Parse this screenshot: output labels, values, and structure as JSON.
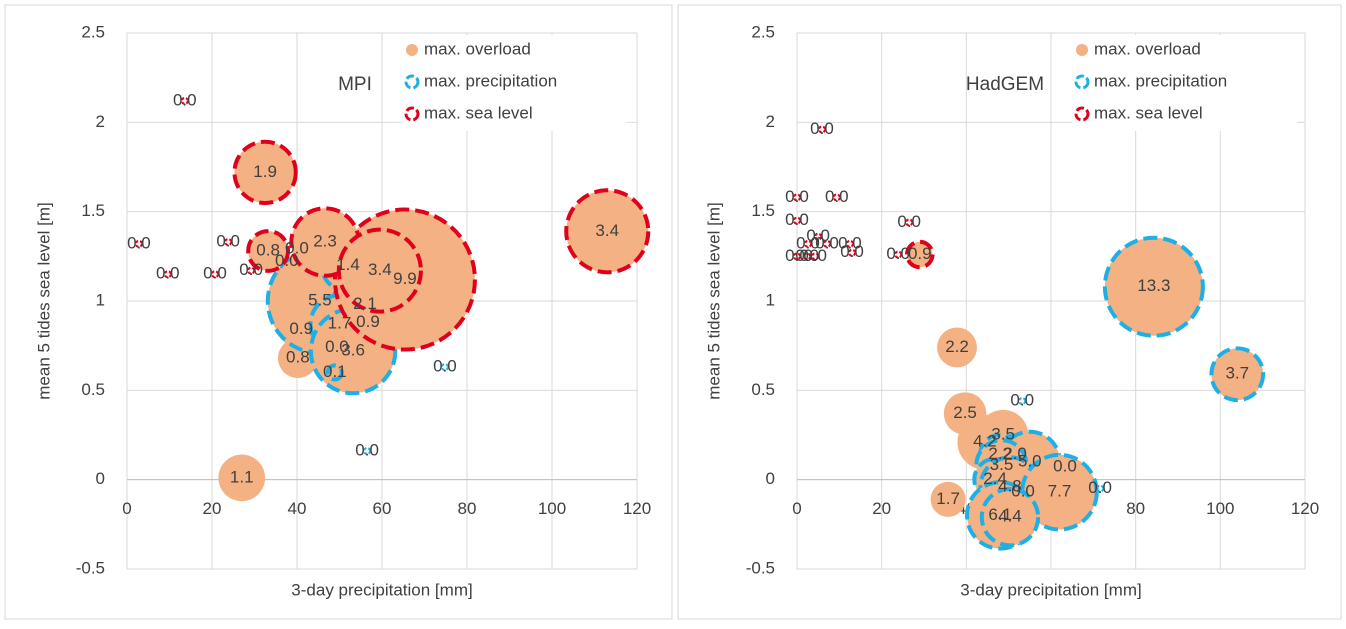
{
  "chart_data": [
    {
      "type": "bubble",
      "title": "MPI",
      "x_label": "3-day precipitation [mm]",
      "y_label": "mean 5 tides sea level [m]",
      "xlim": [
        0,
        120
      ],
      "ylim": [
        -0.5,
        2.5
      ],
      "xticks": [
        0,
        20,
        40,
        60,
        80,
        100,
        120
      ],
      "yticks": [
        -0.5,
        0,
        0.5,
        1,
        1.5,
        2,
        2.5
      ],
      "grid": true,
      "legend": "top-right",
      "series": [
        {
          "name": "max. overload",
          "color": "#f4b183",
          "x": [
            41,
            40.2,
            27,
            13.6,
            2.8,
            23.8,
            40,
            37.6,
            9.6,
            20.7,
            29.2
          ],
          "values": [
            0.84,
            0.68,
            0.01,
            2.12,
            1.32,
            1.33,
            1.29,
            1.22,
            1.15,
            1.15,
            1.17
          ],
          "sizes": [
            0.9,
            0.8,
            1.1,
            0,
            0,
            0,
            0,
            0,
            0,
            0,
            0
          ],
          "size_labels": [
            "0.9",
            "0.8",
            "1.1",
            "0.0",
            "0.0",
            "0.0",
            "0.0",
            "0.0",
            "0.0",
            "0.0",
            "0.0"
          ]
        },
        {
          "name": "max. precipitation",
          "color": "#1cb0e6",
          "x": [
            45.4,
            52,
            56,
            50,
            56.7,
            49.4,
            53.2,
            48.9,
            74.8,
            56.5
          ],
          "values": [
            1.0,
            1.2,
            0.98,
            0.87,
            0.88,
            0.74,
            0.72,
            0.6,
            0.63,
            0.16
          ],
          "sizes": [
            5.5,
            1.4,
            2.1,
            1.7,
            0.9,
            0,
            3.6,
            0.1,
            0,
            0
          ],
          "size_labels": [
            "5.5",
            "1.4",
            "2.1",
            "1.7",
            "0.9",
            "0.0",
            "3.6",
            "0.1",
            "0.0",
            "0.0"
          ]
        },
        {
          "name": "max. sea level",
          "color": "#e0001b",
          "x": [
            65.4,
            32.5,
            113,
            46.6,
            33.2,
            59.5
          ],
          "values": [
            1.12,
            1.72,
            1.39,
            1.33,
            1.28,
            1.17
          ],
          "sizes": [
            9.9,
            1.9,
            3.4,
            2.3,
            0.8,
            3.4
          ],
          "size_labels": [
            "9.9",
            "1.9",
            "3.4",
            "2.3",
            "0.8",
            "3.4"
          ]
        }
      ]
    },
    {
      "type": "bubble",
      "title": "HadGEM",
      "x_label": "3-day precipitation [mm]",
      "y_label": "mean 5 tides sea level [m]",
      "xlim": [
        0,
        120
      ],
      "ylim": [
        -0.5,
        2.5
      ],
      "xticks": [
        0,
        20,
        40,
        60,
        80,
        100,
        120
      ],
      "yticks": [
        -0.5,
        0,
        0.5,
        1,
        1.5,
        2,
        2.5
      ],
      "grid": true,
      "legend": "top-right",
      "series": [
        {
          "name": "max. overload",
          "color": "#f4b183",
          "x": [
            37.8,
            39.7,
            48.7,
            44.4,
            35.7,
            5.9,
            0,
            9.4,
            0,
            5,
            7.1,
            2.6,
            12.5,
            2.4,
            0,
            4.3,
            13,
            23.9
          ],
          "values": [
            0.74,
            0.37,
            0.25,
            0.21,
            -0.11,
            1.96,
            1.58,
            1.58,
            1.45,
            1.36,
            1.32,
            1.32,
            1.32,
            1.25,
            1.25,
            1.25,
            1.27,
            1.26
          ],
          "sizes": [
            2.2,
            2.5,
            3.5,
            4.2,
            1.7,
            0,
            0,
            0,
            0,
            0,
            0,
            0,
            0,
            0,
            0,
            0,
            0,
            0
          ],
          "size_labels": [
            "2.2",
            "2.5",
            "3.5",
            "4.2",
            "1.7",
            "0.0",
            "0.0",
            "0.0",
            "0.0",
            "0.0",
            "0.0",
            "0.0",
            "0.0",
            "0.0",
            "0.0",
            "0.0",
            "0.0",
            "0.0"
          ]
        },
        {
          "name": "max. precipitation",
          "color": "#1cb0e6",
          "x": [
            84.3,
            104,
            53.2,
            48,
            51.5,
            55,
            48.3,
            63.3,
            46.8,
            50.3,
            53.4,
            62,
            71.6,
            48,
            50.3
          ],
          "values": [
            1.08,
            0.59,
            0.44,
            0.14,
            0.14,
            0.1,
            0.08,
            0.07,
            0,
            -0.04,
            -0.07,
            -0.07,
            -0.05,
            -0.2,
            -0.21
          ],
          "sizes": [
            13.3,
            3.7,
            0,
            2.2,
            2.0,
            5.0,
            3.5,
            0,
            2.4,
            4.8,
            0,
            7.7,
            0,
            6.1,
            4.4
          ],
          "size_labels": [
            "13.3",
            "3.7",
            "0.0",
            "2.2",
            "2.0",
            "5.0",
            "3.5",
            "0.0",
            "2.4",
            "4.8",
            "0.0",
            "7.7",
            "0.0",
            "6.1",
            "4.4"
          ]
        },
        {
          "name": "max. sea level",
          "color": "#e0001b",
          "x": [
            26.5,
            29
          ],
          "values": [
            1.44,
            1.26
          ],
          "sizes": [
            0,
            0.9
          ],
          "size_labels": [
            "0.0",
            "0.9"
          ]
        }
      ]
    }
  ]
}
